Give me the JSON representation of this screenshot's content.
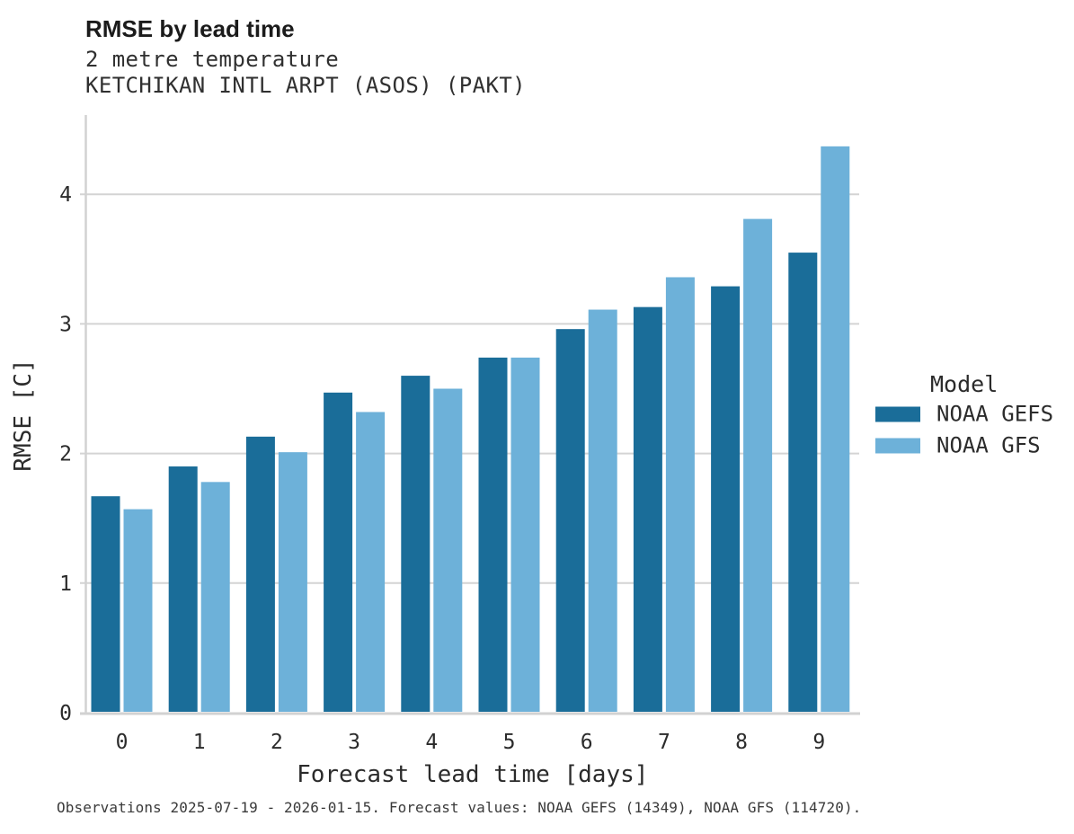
{
  "header": {
    "title": "RMSE by lead time",
    "subtitle": "2 metre temperature",
    "station": "KETCHIKAN INTL ARPT (ASOS) (PAKT)"
  },
  "footer": {
    "note": "Observations 2025-07-19 - 2026-01-15. Forecast values: NOAA GEFS (14349), NOAA GFS (114720)."
  },
  "chart_data": {
    "type": "bar",
    "title": "RMSE by lead time",
    "subtitle": "2 metre temperature",
    "station": "KETCHIKAN INTL ARPT (ASOS) (PAKT)",
    "xlabel": "Forecast lead time [days]",
    "ylabel": "RMSE [C]",
    "categories": [
      "0",
      "1",
      "2",
      "3",
      "4",
      "5",
      "6",
      "7",
      "8",
      "9"
    ],
    "series": [
      {
        "name": "NOAA GEFS",
        "color": "#1a6d99",
        "values": [
          1.67,
          1.9,
          2.13,
          2.47,
          2.6,
          2.74,
          2.96,
          3.13,
          3.29,
          3.55
        ]
      },
      {
        "name": "NOAA GFS",
        "color": "#6db1d9",
        "values": [
          1.57,
          1.78,
          2.01,
          2.32,
          2.5,
          2.74,
          3.11,
          3.36,
          3.81,
          4.37
        ]
      }
    ],
    "ylim": [
      0,
      4.6
    ],
    "yticks": [
      0,
      1,
      2,
      3,
      4
    ],
    "grid": true,
    "legend_title": "Model",
    "legend_position": "right",
    "grid_color": "#d4d4d4",
    "spine_color": "#d2d2d2",
    "text_color": "#2b2b2b"
  }
}
